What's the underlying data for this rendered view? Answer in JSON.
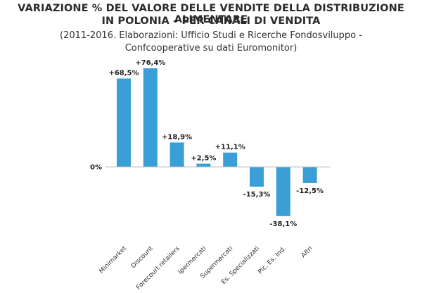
{
  "title_line1": "VARIAZIONE % DEL VALORE DELLE VENDITE DELLA DISTRIBUZIONE ALIMENTARE",
  "title_line2": "IN POLONIA – PER CANALI DI VENDITA",
  "subtitle_line1": "(2011-2016. Elaborazioni: Ufficio Studi e Ricerche Fondosviluppo -",
  "subtitle_line2": "Confcooperative su dati Euromonitor)",
  "zero_label": "0%",
  "bar_color": "#3a9fd6",
  "chart_data": {
    "type": "bar",
    "title": "VARIAZIONE % DEL VALORE DELLE VENDITE DELLA DISTRIBUZIONE ALIMENTARE IN POLONIA – PER CANALI DI VENDITA",
    "subtitle": "(2011-2016. Elaborazioni: Ufficio Studi e Ricerche Fondosviluppo - Confcooperative su dati Euromonitor)",
    "categories": [
      "Minimarket",
      "Discount",
      "Forecourt retailers",
      "Ipermercati",
      "Supermercati",
      "Es. Specializzati",
      "Pic. Es. Ind.",
      "Altri"
    ],
    "values": [
      68.5,
      76.4,
      18.9,
      2.5,
      11.1,
      -15.3,
      -38.1,
      -12.5
    ],
    "data_labels": [
      "+68,5%",
      "+76,4%",
      "+18,9%",
      "+2,5%",
      "+11,1%",
      "-15,3%",
      "-38,1%",
      "-12,5%"
    ],
    "xlabel": "",
    "ylabel": "",
    "ylim": [
      -40,
      80
    ],
    "grid": false,
    "legend": "none"
  }
}
